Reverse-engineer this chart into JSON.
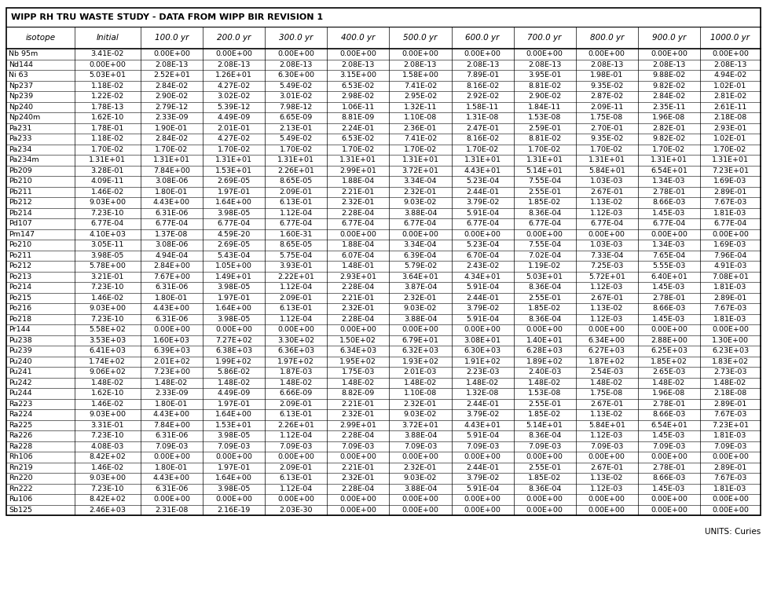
{
  "title": "WIPP RH TRU WASTE STUDY - DATA FROM WIPP BIR REVISION 1",
  "units_label": "UNITS: Curies",
  "headers": [
    "isotope",
    "Initial",
    "100.0 yr",
    "200.0 yr",
    "300.0 yr",
    "400.0 yr",
    "500.0 yr",
    "600.0 yr",
    "700.0 yr",
    "800.0 yr",
    "900.0 yr",
    "1000.0 yr"
  ],
  "rows": [
    [
      "Nb 95m",
      "3.41E-02",
      "0.00E+00",
      "0.00E+00",
      "0.00E+00",
      "0.00E+00",
      "0.00E+00",
      "0.00E+00",
      "0.00E+00",
      "0.00E+00",
      "0.00E+00",
      "0.00E+00"
    ],
    [
      "Nd144",
      "0.00E+00",
      "2.08E-13",
      "2.08E-13",
      "2.08E-13",
      "2.08E-13",
      "2.08E-13",
      "2.08E-13",
      "2.08E-13",
      "2.08E-13",
      "2.08E-13",
      "2.08E-13"
    ],
    [
      "Ni 63",
      "5.03E+01",
      "2.52E+01",
      "1.26E+01",
      "6.30E+00",
      "3.15E+00",
      "1.58E+00",
      "7.89E-01",
      "3.95E-01",
      "1.98E-01",
      "9.88E-02",
      "4.94E-02"
    ],
    [
      "Np237",
      "1.18E-02",
      "2.84E-02",
      "4.27E-02",
      "5.49E-02",
      "6.53E-02",
      "7.41E-02",
      "8.16E-02",
      "8.81E-02",
      "9.35E-02",
      "9.82E-02",
      "1.02E-01"
    ],
    [
      "Np239",
      "1.22E-02",
      "2.90E-02",
      "3.02E-02",
      "3.01E-02",
      "2.98E-02",
      "2.95E-02",
      "2.92E-02",
      "2.90E-02",
      "2.87E-02",
      "2.84E-02",
      "2.81E-02"
    ],
    [
      "Np240",
      "1.78E-13",
      "2.79E-12",
      "5.39E-12",
      "7.98E-12",
      "1.06E-11",
      "1.32E-11",
      "1.58E-11",
      "1.84E-11",
      "2.09E-11",
      "2.35E-11",
      "2.61E-11"
    ],
    [
      "Np240m",
      "1.62E-10",
      "2.33E-09",
      "4.49E-09",
      "6.65E-09",
      "8.81E-09",
      "1.10E-08",
      "1.31E-08",
      "1.53E-08",
      "1.75E-08",
      "1.96E-08",
      "2.18E-08"
    ],
    [
      "Pa231",
      "1.78E-01",
      "1.90E-01",
      "2.01E-01",
      "2.13E-01",
      "2.24E-01",
      "2.36E-01",
      "2.47E-01",
      "2.59E-01",
      "2.70E-01",
      "2.82E-01",
      "2.93E-01"
    ],
    [
      "Pa233",
      "1.18E-02",
      "2.84E-02",
      "4.27E-02",
      "5.49E-02",
      "6.53E-02",
      "7.41E-02",
      "8.16E-02",
      "8.81E-02",
      "9.35E-02",
      "9.82E-02",
      "1.02E-01"
    ],
    [
      "Pa234",
      "1.70E-02",
      "1.70E-02",
      "1.70E-02",
      "1.70E-02",
      "1.70E-02",
      "1.70E-02",
      "1.70E-02",
      "1.70E-02",
      "1.70E-02",
      "1.70E-02",
      "1.70E-02"
    ],
    [
      "Pa234m",
      "1.31E+01",
      "1.31E+01",
      "1.31E+01",
      "1.31E+01",
      "1.31E+01",
      "1.31E+01",
      "1.31E+01",
      "1.31E+01",
      "1.31E+01",
      "1.31E+01",
      "1.31E+01"
    ],
    [
      "Pb209",
      "3.28E-01",
      "7.84E+00",
      "1.53E+01",
      "2.26E+01",
      "2.99E+01",
      "3.72E+01",
      "4.43E+01",
      "5.14E+01",
      "5.84E+01",
      "6.54E+01",
      "7.23E+01"
    ],
    [
      "Pb210",
      "4.09E-11",
      "3.08E-06",
      "2.69E-05",
      "8.65E-05",
      "1.88E-04",
      "3.34E-04",
      "5.23E-04",
      "7.55E-04",
      "1.03E-03",
      "1.34E-03",
      "1.69E-03"
    ],
    [
      "Pb211",
      "1.46E-02",
      "1.80E-01",
      "1.97E-01",
      "2.09E-01",
      "2.21E-01",
      "2.32E-01",
      "2.44E-01",
      "2.55E-01",
      "2.67E-01",
      "2.78E-01",
      "2.89E-01"
    ],
    [
      "Pb212",
      "9.03E+00",
      "4.43E+00",
      "1.64E+00",
      "6.13E-01",
      "2.32E-01",
      "9.03E-02",
      "3.79E-02",
      "1.85E-02",
      "1.13E-02",
      "8.66E-03",
      "7.67E-03"
    ],
    [
      "Pb214",
      "7.23E-10",
      "6.31E-06",
      "3.98E-05",
      "1.12E-04",
      "2.28E-04",
      "3.88E-04",
      "5.91E-04",
      "8.36E-04",
      "1.12E-03",
      "1.45E-03",
      "1.81E-03"
    ],
    [
      "Pd107",
      "6.77E-04",
      "6.77E-04",
      "6.77E-04",
      "6.77E-04",
      "6.77E-04",
      "6.77E-04",
      "6.77E-04",
      "6.77E-04",
      "6.77E-04",
      "6.77E-04",
      "6.77E-04"
    ],
    [
      "Pm147",
      "4.10E+03",
      "1.37E-08",
      "4.59E-20",
      "1.60E-31",
      "0.00E+00",
      "0.00E+00",
      "0.00E+00",
      "0.00E+00",
      "0.00E+00",
      "0.00E+00",
      "0.00E+00"
    ],
    [
      "Po210",
      "3.05E-11",
      "3.08E-06",
      "2.69E-05",
      "8.65E-05",
      "1.88E-04",
      "3.34E-04",
      "5.23E-04",
      "7.55E-04",
      "1.03E-03",
      "1.34E-03",
      "1.69E-03"
    ],
    [
      "Po211",
      "3.98E-05",
      "4.94E-04",
      "5.43E-04",
      "5.75E-04",
      "6.07E-04",
      "6.39E-04",
      "6.70E-04",
      "7.02E-04",
      "7.33E-04",
      "7.65E-04",
      "7.96E-04"
    ],
    [
      "Po212",
      "5.78E+00",
      "2.84E+00",
      "1.05E+00",
      "3.93E-01",
      "1.48E-01",
      "5.79E-02",
      "2.43E-02",
      "1.19E-02",
      "7.25E-03",
      "5.55E-03",
      "4.91E-03"
    ],
    [
      "Po213",
      "3.21E-01",
      "7.67E+00",
      "1.49E+01",
      "2.22E+01",
      "2.93E+01",
      "3.64E+01",
      "4.34E+01",
      "5.03E+01",
      "5.72E+01",
      "6.40E+01",
      "7.08E+01"
    ],
    [
      "Po214",
      "7.23E-10",
      "6.31E-06",
      "3.98E-05",
      "1.12E-04",
      "2.28E-04",
      "3.87E-04",
      "5.91E-04",
      "8.36E-04",
      "1.12E-03",
      "1.45E-03",
      "1.81E-03"
    ],
    [
      "Po215",
      "1.46E-02",
      "1.80E-01",
      "1.97E-01",
      "2.09E-01",
      "2.21E-01",
      "2.32E-01",
      "2.44E-01",
      "2.55E-01",
      "2.67E-01",
      "2.78E-01",
      "2.89E-01"
    ],
    [
      "Po216",
      "9.03E+00",
      "4.43E+00",
      "1.64E+00",
      "6.13E-01",
      "2.32E-01",
      "9.03E-02",
      "3.79E-02",
      "1.85E-02",
      "1.13E-02",
      "8.66E-03",
      "7.67E-03"
    ],
    [
      "Po218",
      "7.23E-10",
      "6.31E-06",
      "3.98E-05",
      "1.12E-04",
      "2.28E-04",
      "3.88E-04",
      "5.91E-04",
      "8.36E-04",
      "1.12E-03",
      "1.45E-03",
      "1.81E-03"
    ],
    [
      "Pr144",
      "5.58E+02",
      "0.00E+00",
      "0.00E+00",
      "0.00E+00",
      "0.00E+00",
      "0.00E+00",
      "0.00E+00",
      "0.00E+00",
      "0.00E+00",
      "0.00E+00",
      "0.00E+00"
    ],
    [
      "Pu238",
      "3.53E+03",
      "1.60E+03",
      "7.27E+02",
      "3.30E+02",
      "1.50E+02",
      "6.79E+01",
      "3.08E+01",
      "1.40E+01",
      "6.34E+00",
      "2.88E+00",
      "1.30E+00"
    ],
    [
      "Pu239",
      "6.41E+03",
      "6.39E+03",
      "6.38E+03",
      "6.36E+03",
      "6.34E+03",
      "6.32E+03",
      "6.30E+03",
      "6.28E+03",
      "6.27E+03",
      "6.25E+03",
      "6.23E+03"
    ],
    [
      "Pu240",
      "1.74E+02",
      "2.01E+02",
      "1.99E+02",
      "1.97E+02",
      "1.95E+02",
      "1.93E+02",
      "1.91E+02",
      "1.89E+02",
      "1.87E+02",
      "1.85E+02",
      "1.83E+02"
    ],
    [
      "Pu241",
      "9.06E+02",
      "7.23E+00",
      "5.86E-02",
      "1.87E-03",
      "1.75E-03",
      "2.01E-03",
      "2.23E-03",
      "2.40E-03",
      "2.54E-03",
      "2.65E-03",
      "2.73E-03"
    ],
    [
      "Pu242",
      "1.48E-02",
      "1.48E-02",
      "1.48E-02",
      "1.48E-02",
      "1.48E-02",
      "1.48E-02",
      "1.48E-02",
      "1.48E-02",
      "1.48E-02",
      "1.48E-02",
      "1.48E-02"
    ],
    [
      "Pu244",
      "1.62E-10",
      "2.33E-09",
      "4.49E-09",
      "6.66E-09",
      "8.82E-09",
      "1.10E-08",
      "1.32E-08",
      "1.53E-08",
      "1.75E-08",
      "1.96E-08",
      "2.18E-08"
    ],
    [
      "Ra223",
      "1.46E-02",
      "1.80E-01",
      "1.97E-01",
      "2.09E-01",
      "2.21E-01",
      "2.32E-01",
      "2.44E-01",
      "2.55E-01",
      "2.67E-01",
      "2.78E-01",
      "2.89E-01"
    ],
    [
      "Ra224",
      "9.03E+00",
      "4.43E+00",
      "1.64E+00",
      "6.13E-01",
      "2.32E-01",
      "9.03E-02",
      "3.79E-02",
      "1.85E-02",
      "1.13E-02",
      "8.66E-03",
      "7.67E-03"
    ],
    [
      "Ra225",
      "3.31E-01",
      "7.84E+00",
      "1.53E+01",
      "2.26E+01",
      "2.99E+01",
      "3.72E+01",
      "4.43E+01",
      "5.14E+01",
      "5.84E+01",
      "6.54E+01",
      "7.23E+01"
    ],
    [
      "Ra226",
      "7.23E-10",
      "6.31E-06",
      "3.98E-05",
      "1.12E-04",
      "2.28E-04",
      "3.88E-04",
      "5.91E-04",
      "8.36E-04",
      "1.12E-03",
      "1.45E-03",
      "1.81E-03"
    ],
    [
      "Ra228",
      "4.08E-03",
      "7.09E-03",
      "7.09E-03",
      "7.09E-03",
      "7.09E-03",
      "7.09E-03",
      "7.09E-03",
      "7.09E-03",
      "7.09E-03",
      "7.09E-03",
      "7.09E-03"
    ],
    [
      "Rh106",
      "8.42E+02",
      "0.00E+00",
      "0.00E+00",
      "0.00E+00",
      "0.00E+00",
      "0.00E+00",
      "0.00E+00",
      "0.00E+00",
      "0.00E+00",
      "0.00E+00",
      "0.00E+00"
    ],
    [
      "Rn219",
      "1.46E-02",
      "1.80E-01",
      "1.97E-01",
      "2.09E-01",
      "2.21E-01",
      "2.32E-01",
      "2.44E-01",
      "2.55E-01",
      "2.67E-01",
      "2.78E-01",
      "2.89E-01"
    ],
    [
      "Rn220",
      "9.03E+00",
      "4.43E+00",
      "1.64E+00",
      "6.13E-01",
      "2.32E-01",
      "9.03E-02",
      "3.79E-02",
      "1.85E-02",
      "1.13E-02",
      "8.66E-03",
      "7.67E-03"
    ],
    [
      "Rn222",
      "7.23E-10",
      "6.31E-06",
      "3.98E-05",
      "1.12E-04",
      "2.28E-04",
      "3.88E-04",
      "5.91E-04",
      "8.36E-04",
      "1.12E-03",
      "1.45E-03",
      "1.81E-03"
    ],
    [
      "Ru106",
      "8.42E+02",
      "0.00E+00",
      "0.00E+00",
      "0.00E+00",
      "0.00E+00",
      "0.00E+00",
      "0.00E+00",
      "0.00E+00",
      "0.00E+00",
      "0.00E+00",
      "0.00E+00"
    ],
    [
      "Sb125",
      "2.46E+03",
      "2.31E-08",
      "2.16E-19",
      "2.03E-30",
      "0.00E+00",
      "0.00E+00",
      "0.00E+00",
      "0.00E+00",
      "0.00E+00",
      "0.00E+00",
      "0.00E+00"
    ]
  ],
  "bg_color": "#ffffff",
  "grid_color": "#000000",
  "title_fontsize": 8.0,
  "header_fontsize": 7.5,
  "cell_fontsize": 6.8,
  "units_fontsize": 7.5
}
